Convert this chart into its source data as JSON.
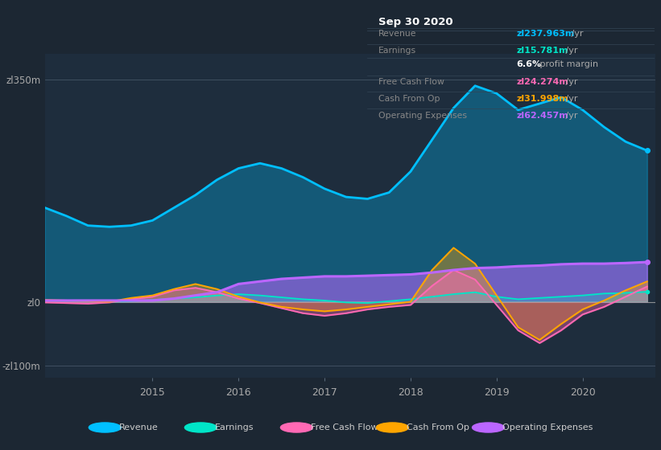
{
  "bg_color": "#1c2733",
  "plot_bg_color": "#1e2d3d",
  "ylim": [
    -120,
    390
  ],
  "xlim_start": 2013.75,
  "xlim_end": 2020.85,
  "ytick_labels": [
    "zl350m",
    "zl0",
    "-zl100m"
  ],
  "ytick_values": [
    350,
    0,
    -100
  ],
  "xtick_labels": [
    "2015",
    "2016",
    "2017",
    "2018",
    "2019",
    "2020"
  ],
  "xtick_positions": [
    2015,
    2016,
    2017,
    2018,
    2019,
    2020
  ],
  "legend_items": [
    {
      "label": "Revenue",
      "color": "#00bfff"
    },
    {
      "label": "Earnings",
      "color": "#00e5c8"
    },
    {
      "label": "Free Cash Flow",
      "color": "#ff69b4"
    },
    {
      "label": "Cash From Op",
      "color": "#ffa500"
    },
    {
      "label": "Operating Expenses",
      "color": "#bb66ff"
    }
  ],
  "revenue_x": [
    2013.75,
    2014.0,
    2014.25,
    2014.5,
    2014.75,
    2015.0,
    2015.25,
    2015.5,
    2015.75,
    2016.0,
    2016.25,
    2016.5,
    2016.75,
    2017.0,
    2017.25,
    2017.5,
    2017.75,
    2018.0,
    2018.25,
    2018.5,
    2018.75,
    2019.0,
    2019.25,
    2019.5,
    2019.75,
    2020.0,
    2020.25,
    2020.5,
    2020.75
  ],
  "revenue_y": [
    148,
    135,
    120,
    118,
    120,
    128,
    148,
    168,
    192,
    210,
    218,
    210,
    196,
    178,
    165,
    162,
    172,
    205,
    255,
    305,
    340,
    328,
    302,
    312,
    322,
    302,
    275,
    252,
    238
  ],
  "earnings_x": [
    2013.75,
    2014.0,
    2014.25,
    2014.5,
    2014.75,
    2015.0,
    2015.25,
    2015.5,
    2015.75,
    2016.0,
    2016.25,
    2016.5,
    2016.75,
    2017.0,
    2017.25,
    2017.5,
    2017.75,
    2018.0,
    2018.25,
    2018.5,
    2018.75,
    2019.0,
    2019.25,
    2019.5,
    2019.75,
    2020.0,
    2020.25,
    2020.5,
    2020.75
  ],
  "earnings_y": [
    2,
    2,
    1,
    0,
    1,
    3,
    5,
    7,
    10,
    12,
    10,
    7,
    4,
    2,
    -1,
    -2,
    1,
    4,
    8,
    12,
    15,
    8,
    4,
    6,
    8,
    10,
    13,
    14,
    15.78
  ],
  "fcf_x": [
    2013.75,
    2014.0,
    2014.25,
    2014.5,
    2014.75,
    2015.0,
    2015.25,
    2015.5,
    2015.75,
    2016.0,
    2016.25,
    2016.5,
    2016.75,
    2017.0,
    2017.25,
    2017.5,
    2017.75,
    2018.0,
    2018.25,
    2018.5,
    2018.75,
    2019.0,
    2019.25,
    2019.5,
    2019.75,
    2020.0,
    2020.25,
    2020.5,
    2020.75
  ],
  "fcf_y": [
    -1,
    -2,
    -3,
    -1,
    4,
    8,
    18,
    22,
    15,
    5,
    -2,
    -10,
    -18,
    -22,
    -18,
    -12,
    -8,
    -5,
    25,
    50,
    35,
    -5,
    -45,
    -65,
    -45,
    -20,
    -8,
    8,
    24
  ],
  "cop_x": [
    2013.75,
    2014.0,
    2014.25,
    2014.5,
    2014.75,
    2015.0,
    2015.25,
    2015.5,
    2015.75,
    2016.0,
    2016.25,
    2016.5,
    2016.75,
    2017.0,
    2017.25,
    2017.5,
    2017.75,
    2018.0,
    2018.25,
    2018.5,
    2018.75,
    2019.0,
    2019.25,
    2019.5,
    2019.75,
    2020.0,
    2020.25,
    2020.5,
    2020.75
  ],
  "cop_y": [
    3,
    2,
    1,
    0,
    6,
    10,
    20,
    28,
    20,
    8,
    -1,
    -8,
    -12,
    -15,
    -12,
    -8,
    -4,
    0,
    50,
    85,
    60,
    10,
    -40,
    -60,
    -35,
    -12,
    2,
    18,
    32
  ],
  "opex_x": [
    2013.75,
    2014.0,
    2014.25,
    2014.5,
    2014.75,
    2015.0,
    2015.25,
    2015.5,
    2015.75,
    2016.0,
    2016.25,
    2016.5,
    2016.75,
    2017.0,
    2017.25,
    2017.5,
    2017.75,
    2018.0,
    2018.25,
    2018.5,
    2018.75,
    2019.0,
    2019.25,
    2019.5,
    2019.75,
    2020.0,
    2020.25,
    2020.5,
    2020.75
  ],
  "opex_y": [
    2,
    2,
    2,
    2,
    2,
    2,
    5,
    10,
    15,
    28,
    32,
    36,
    38,
    40,
    40,
    41,
    42,
    43,
    46,
    50,
    53,
    54,
    56,
    57,
    59,
    60,
    60,
    61,
    62.5
  ],
  "rev_color": "#00bfff",
  "earn_color": "#00e5c8",
  "fcf_color": "#ff69b4",
  "cop_color": "#ffa500",
  "opex_color": "#bb66ff",
  "zero_line_color": "#aaaaaa",
  "h_line_color": "#556677"
}
